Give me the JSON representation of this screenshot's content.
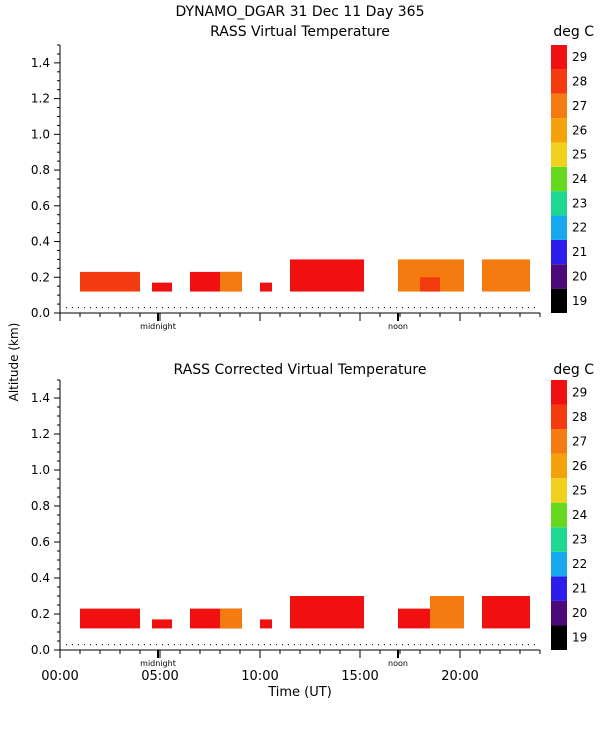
{
  "header": {
    "line1": "DYNAMO_DGAR  31 Dec 11 Day 365"
  },
  "shared": {
    "ylabel": "Altitude (km)",
    "xlabel": "Time (UT)",
    "midnight_label": "midnight",
    "noon_label": "noon",
    "x_tick_labels": [
      "00:00",
      "05:00",
      "10:00",
      "15:00",
      "20:00"
    ],
    "y_tick_labels": [
      "0.0",
      "0.2",
      "0.4",
      "0.6",
      "0.8",
      "1.0",
      "1.2",
      "1.4"
    ]
  },
  "colorbar": {
    "unit": "deg C",
    "levels": [
      19,
      20,
      21,
      22,
      23,
      24,
      25,
      26,
      27,
      28,
      29
    ],
    "colors": {
      "19": "#000000",
      "20": "#4b0a78",
      "21": "#2a1ee8",
      "22": "#16a8f0",
      "23": "#1ed890",
      "24": "#66d81e",
      "25": "#f0d21e",
      "26": "#f4a20c",
      "27": "#f57a10",
      "28": "#f23c10",
      "29": "#f01010"
    }
  },
  "chart_data": [
    {
      "type": "heatmap",
      "title": "RASS Virtual Temperature",
      "xlabel": "",
      "ylabel": "Altitude (km)",
      "xlim": [
        0,
        24
      ],
      "ylim": [
        0,
        1.5
      ],
      "x_ticks": [
        0,
        5,
        10,
        15,
        20
      ],
      "y_ticks": [
        0,
        0.2,
        0.4,
        0.6,
        0.8,
        1.0,
        1.2,
        1.4
      ],
      "midnight_marker": 4.9,
      "noon_marker": 16.9,
      "min_altitude_line": 0.03,
      "value_unit": "deg C",
      "cells": [
        {
          "t0": 1.0,
          "t1": 4.0,
          "a0": 0.12,
          "a1": 0.23,
          "value": 28
        },
        {
          "t0": 4.6,
          "t1": 5.6,
          "a0": 0.12,
          "a1": 0.17,
          "value": 29
        },
        {
          "t0": 6.5,
          "t1": 9.1,
          "a0": 0.12,
          "a1": 0.23,
          "value": 29
        },
        {
          "t0": 8.0,
          "t1": 9.1,
          "a0": 0.12,
          "a1": 0.23,
          "value": 27
        },
        {
          "t0": 10.0,
          "t1": 10.6,
          "a0": 0.12,
          "a1": 0.17,
          "value": 29
        },
        {
          "t0": 11.5,
          "t1": 15.2,
          "a0": 0.12,
          "a1": 0.3,
          "value": 29
        },
        {
          "t0": 16.9,
          "t1": 20.2,
          "a0": 0.12,
          "a1": 0.3,
          "value": 27
        },
        {
          "t0": 18.0,
          "t1": 19.0,
          "a0": 0.12,
          "a1": 0.2,
          "value": 28
        },
        {
          "t0": 21.1,
          "t1": 23.5,
          "a0": 0.12,
          "a1": 0.3,
          "value": 27
        }
      ]
    },
    {
      "type": "heatmap",
      "title": "RASS Corrected Virtual Temperature",
      "xlabel": "Time (UT)",
      "ylabel": "Altitude (km)",
      "xlim": [
        0,
        24
      ],
      "ylim": [
        0,
        1.5
      ],
      "x_ticks": [
        0,
        5,
        10,
        15,
        20
      ],
      "y_ticks": [
        0,
        0.2,
        0.4,
        0.6,
        0.8,
        1.0,
        1.2,
        1.4
      ],
      "midnight_marker": 4.9,
      "noon_marker": 16.9,
      "min_altitude_line": 0.03,
      "value_unit": "deg C",
      "cells": [
        {
          "t0": 1.0,
          "t1": 4.0,
          "a0": 0.12,
          "a1": 0.23,
          "value": 29
        },
        {
          "t0": 4.6,
          "t1": 5.6,
          "a0": 0.12,
          "a1": 0.17,
          "value": 29
        },
        {
          "t0": 6.5,
          "t1": 9.1,
          "a0": 0.12,
          "a1": 0.23,
          "value": 29
        },
        {
          "t0": 8.0,
          "t1": 9.1,
          "a0": 0.12,
          "a1": 0.23,
          "value": 27
        },
        {
          "t0": 10.0,
          "t1": 10.6,
          "a0": 0.12,
          "a1": 0.17,
          "value": 29
        },
        {
          "t0": 11.5,
          "t1": 15.2,
          "a0": 0.12,
          "a1": 0.3,
          "value": 29
        },
        {
          "t0": 16.9,
          "t1": 18.5,
          "a0": 0.12,
          "a1": 0.23,
          "value": 29
        },
        {
          "t0": 18.5,
          "t1": 20.2,
          "a0": 0.12,
          "a1": 0.3,
          "value": 27
        },
        {
          "t0": 21.1,
          "t1": 23.5,
          "a0": 0.12,
          "a1": 0.3,
          "value": 29
        }
      ]
    }
  ]
}
